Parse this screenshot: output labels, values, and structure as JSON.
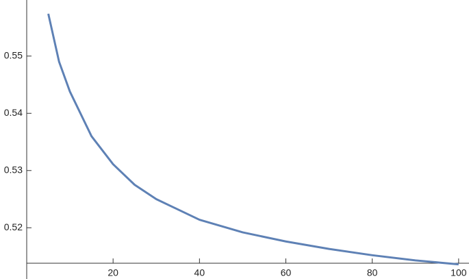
{
  "chart_data": {
    "type": "line",
    "x": [
      5,
      7.5,
      10,
      15,
      20,
      25,
      30,
      40,
      50,
      60,
      70,
      80,
      90,
      100
    ],
    "series": [
      {
        "color": "#5e81b5",
        "values": [
          0.5574,
          0.549,
          0.5438,
          0.536,
          0.5311,
          0.5275,
          0.525,
          0.5214,
          0.5192,
          0.5176,
          0.5163,
          0.5152,
          0.5143,
          0.5136
        ]
      }
    ],
    "xlim": [
      0,
      102.4
    ],
    "ylim": [
      0.5138,
      0.5598
    ],
    "xticks": [
      20,
      40,
      60,
      80,
      100
    ],
    "yticks": [
      0.52,
      0.53,
      0.54,
      0.55
    ]
  }
}
